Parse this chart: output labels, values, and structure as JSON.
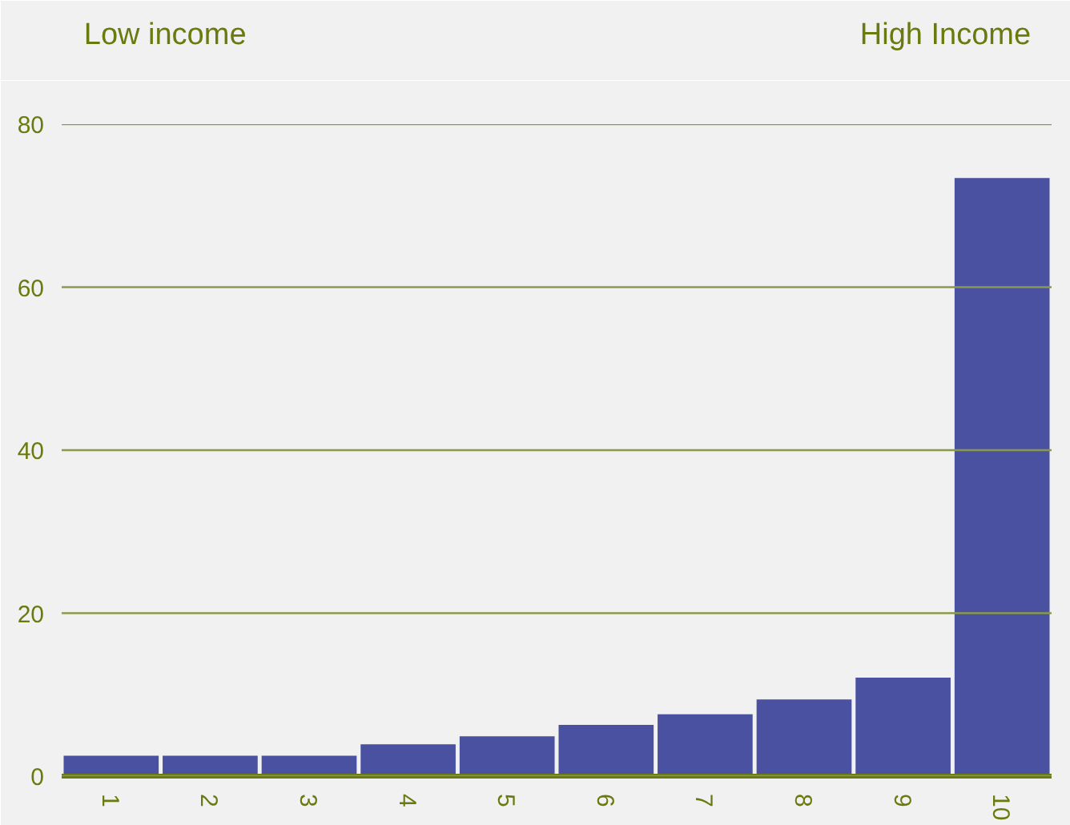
{
  "chart_data": {
    "type": "bar",
    "annotations": [
      "Low income",
      "High Income"
    ],
    "categories": [
      "1",
      "2",
      "3",
      "4",
      "5",
      "6",
      "7",
      "8",
      "9",
      "10"
    ],
    "values": [
      2.5,
      2.5,
      2.5,
      3.9,
      4.9,
      6.3,
      7.6,
      9.4,
      12.1,
      73.4
    ],
    "color": "#4a51a0",
    "ylim": [
      0,
      80
    ],
    "yticks": [
      0,
      20,
      40,
      60,
      80
    ],
    "grid": "y"
  }
}
